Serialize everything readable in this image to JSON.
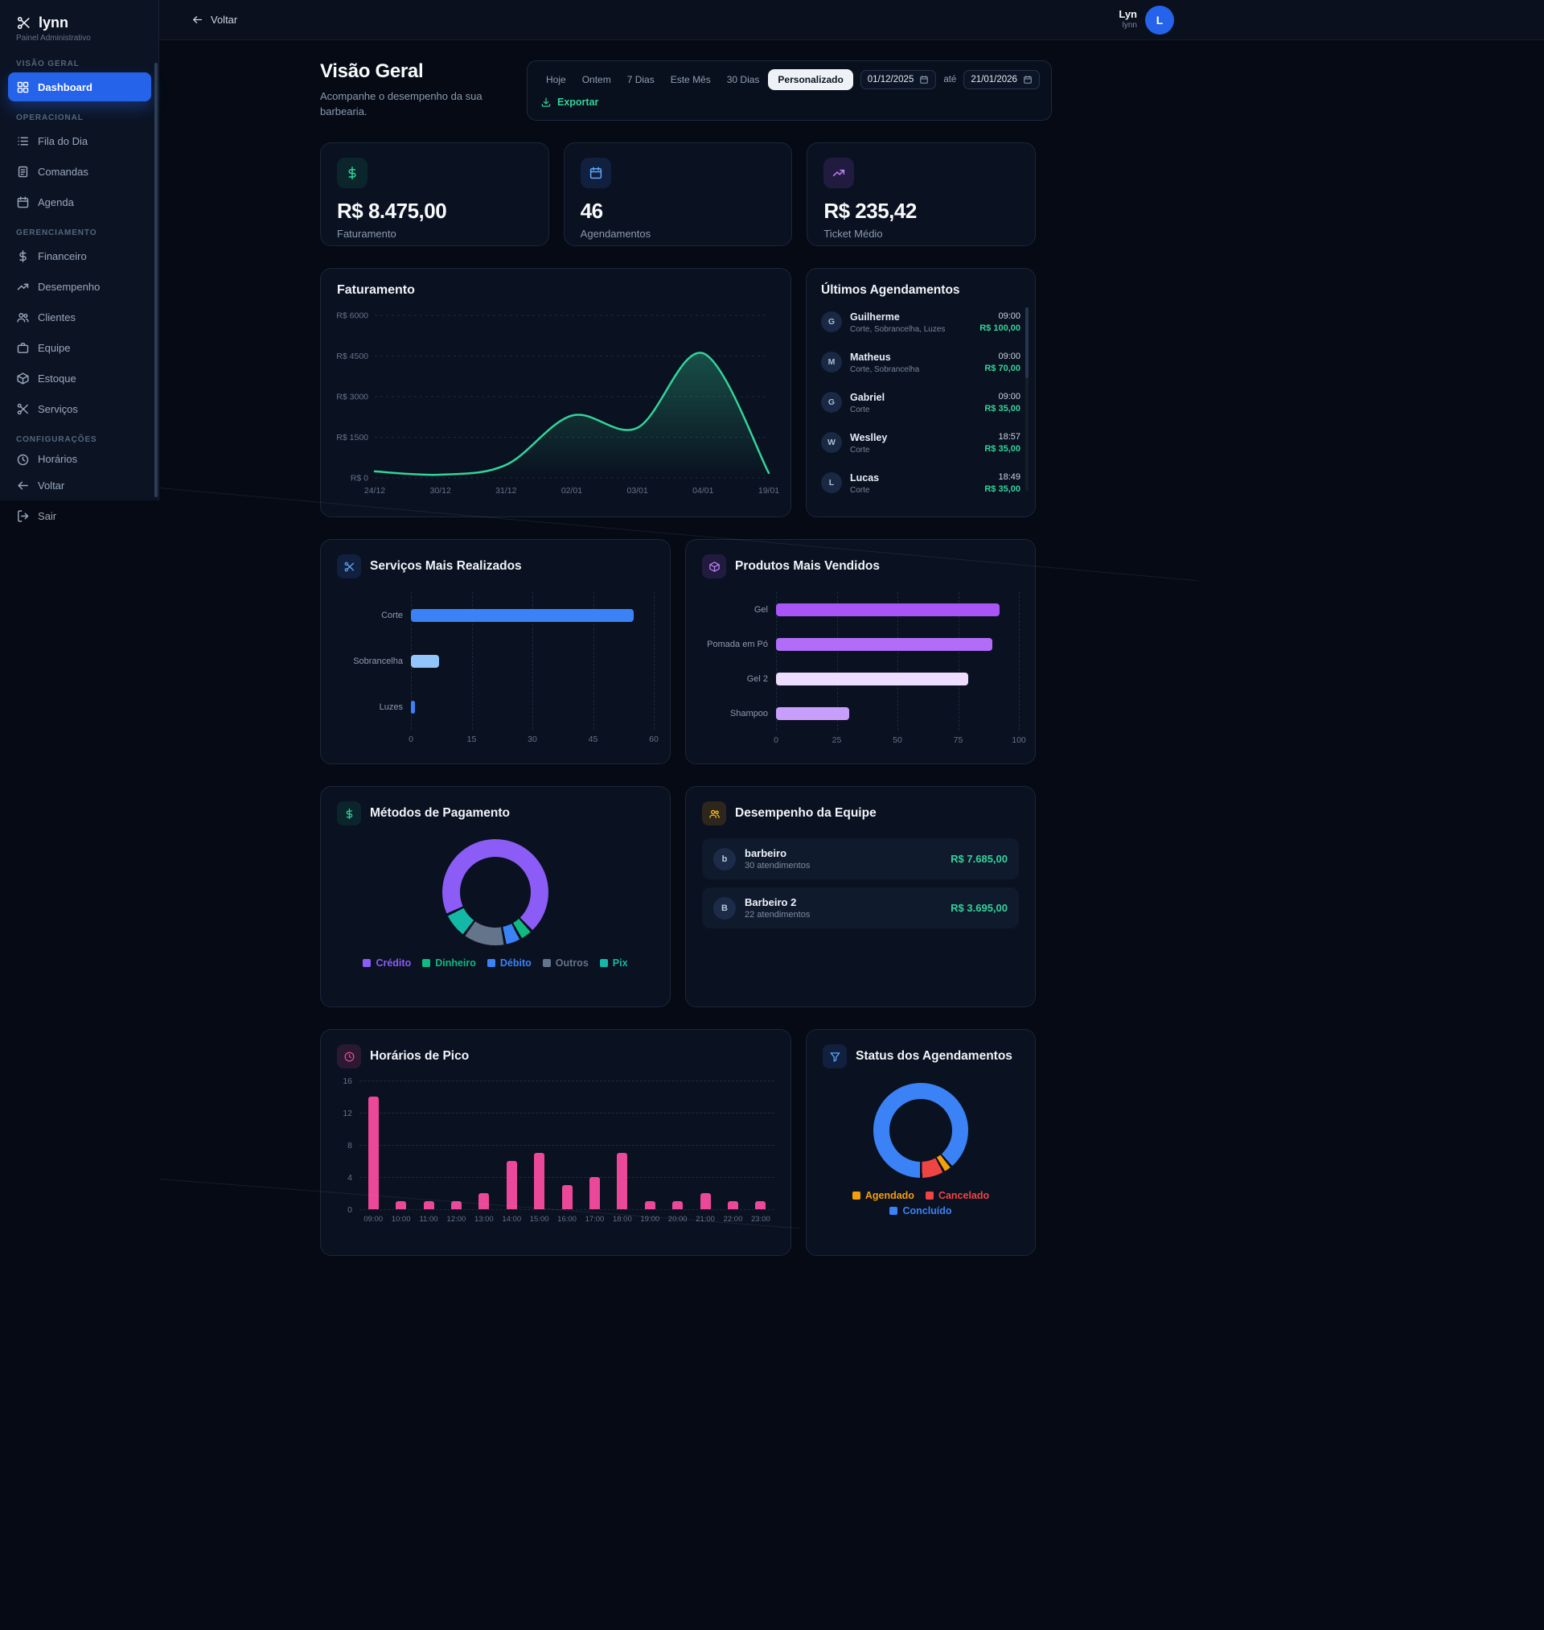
{
  "sidebar": {
    "logo_name": "lynn",
    "logo_subtitle": "Painel Administrativo",
    "logo_icon": "scissors",
    "sections": [
      {
        "label": "VISÃO GERAL",
        "items": [
          {
            "label": "Dashboard",
            "icon": "dashboard",
            "active": true
          }
        ]
      },
      {
        "label": "OPERACIONAL",
        "items": [
          {
            "label": "Fila do Dia",
            "icon": "list"
          },
          {
            "label": "Comandas",
            "icon": "receipt"
          },
          {
            "label": "Agenda",
            "icon": "calendar"
          }
        ]
      },
      {
        "label": "GERENCIAMENTO",
        "items": [
          {
            "label": "Financeiro",
            "icon": "dollar"
          },
          {
            "label": "Desempenho",
            "icon": "trending-up"
          },
          {
            "label": "Clientes",
            "icon": "users"
          },
          {
            "label": "Equipe",
            "icon": "briefcase"
          },
          {
            "label": "Estoque",
            "icon": "package"
          },
          {
            "label": "Serviços",
            "icon": "scissors"
          }
        ]
      },
      {
        "label": "CONFIGURAÇÕES",
        "items": [
          {
            "label": "Horários",
            "icon": "clock",
            "clipped": true
          }
        ]
      }
    ],
    "footer_items": [
      {
        "label": "Voltar",
        "icon": "arrow-left"
      },
      {
        "label": "Sair",
        "icon": "log-out"
      }
    ]
  },
  "topbar": {
    "back_label": "Voltar",
    "user_name": "Lyn",
    "user_handle": "lynn",
    "avatar_initial": "L"
  },
  "page": {
    "title": "Visão Geral",
    "subtitle": "Acompanhe o desempenho da sua barbearia."
  },
  "filters": {
    "buttons": [
      "Hoje",
      "Ontem",
      "7 Dias",
      "Este Mês",
      "30 Dias",
      "Personalizado"
    ],
    "active": "Personalizado",
    "date_from": "01/12/2025",
    "until_label": "até",
    "date_to": "21/01/2026",
    "export_label": "Exportar"
  },
  "stats": [
    {
      "icon": "dollar",
      "accent": "green",
      "value": "R$ 8.475,00",
      "label": "Faturamento"
    },
    {
      "icon": "calendar",
      "accent": "blue",
      "value": "46",
      "label": "Agendamentos"
    },
    {
      "icon": "trending-up",
      "accent": "purple",
      "value": "R$ 235,42",
      "label": "Ticket Médio"
    }
  ],
  "cards": {
    "revenue": {
      "title": "Faturamento"
    },
    "appointments": {
      "title": "Últimos Agendamentos"
    },
    "services": {
      "title": "Serviços Mais Realizados"
    },
    "products": {
      "title": "Produtos Mais Vendidos"
    },
    "payments": {
      "title": "Métodos de Pagamento"
    },
    "team": {
      "title": "Desempenho da Equipe"
    },
    "peak": {
      "title": "Horários de Pico"
    },
    "status": {
      "title": "Status dos Agendamentos"
    }
  },
  "appointments": [
    {
      "initial": "G",
      "name": "Guilherme",
      "services": "Corte, Sobrancelha, Luzes",
      "time": "09:00",
      "price": "R$ 100,00"
    },
    {
      "initial": "M",
      "name": "Matheus",
      "services": "Corte, Sobrancelha",
      "time": "09:00",
      "price": "R$ 70,00"
    },
    {
      "initial": "G",
      "name": "Gabriel",
      "services": "Corte",
      "time": "09:00",
      "price": "R$ 35,00"
    },
    {
      "initial": "W",
      "name": "Weslley",
      "services": "Corte",
      "time": "18:57",
      "price": "R$ 35,00"
    },
    {
      "initial": "L",
      "name": "Lucas",
      "services": "Corte",
      "time": "18:49",
      "price": "R$ 35,00"
    }
  ],
  "team": [
    {
      "initial": "b",
      "name": "barbeiro",
      "sub": "30 atendimentos",
      "value": "R$ 7.685,00"
    },
    {
      "initial": "B",
      "name": "Barbeiro 2",
      "sub": "22 atendimentos",
      "value": "R$ 3.695,00"
    }
  ],
  "chart_data": [
    {
      "id": "revenue",
      "type": "area",
      "title": "Faturamento",
      "x": [
        "24/12",
        "30/12",
        "31/12",
        "02/01",
        "03/01",
        "04/01",
        "19/01"
      ],
      "values": [
        240,
        120,
        480,
        2300,
        1850,
        4600,
        180
      ],
      "ylim": [
        0,
        6000
      ],
      "yticks": [
        {
          "v": 0,
          "label": "R$ 0"
        },
        {
          "v": 1500,
          "label": "R$ 1500"
        },
        {
          "v": 3000,
          "label": "R$ 3000"
        },
        {
          "v": 4500,
          "label": "R$ 4500"
        },
        {
          "v": 6000,
          "label": "R$ 6000"
        }
      ],
      "line_color": "#34d399",
      "fill_from": "rgba(52,211,153,0.32)",
      "fill_to": "rgba(52,211,153,0)",
      "grid": "dashed",
      "legend": false
    },
    {
      "id": "services",
      "type": "bar",
      "orientation": "horizontal",
      "title": "Serviços Mais Realizados",
      "categories": [
        "Corte",
        "Sobrancelha",
        "Luzes"
      ],
      "values": [
        55,
        7,
        1
      ],
      "xmax": 60,
      "xticks": [
        0,
        15,
        30,
        45,
        60
      ],
      "colors": [
        "#3b82f6",
        "#93c5fd",
        "#3b82f6"
      ],
      "grid": "dashed"
    },
    {
      "id": "products",
      "type": "bar",
      "orientation": "horizontal",
      "title": "Produtos Mais Vendidos",
      "categories": [
        "Gel",
        "Pomada em Pó",
        "Gel 2",
        "Shampoo"
      ],
      "values": [
        92,
        89,
        79,
        30
      ],
      "xmax": 100,
      "xticks": [
        0,
        25,
        50,
        75,
        100
      ],
      "colors": [
        "#a855f7",
        "#b16cf8",
        "#eedcfe",
        "#c79efb"
      ],
      "grid": "dashed"
    },
    {
      "id": "payments",
      "type": "donut",
      "title": "Métodos de Pagamento",
      "labels": [
        "Crédito",
        "Dinheiro",
        "Débito",
        "Outros",
        "Pix"
      ],
      "values": [
        70,
        4,
        5,
        13,
        8
      ],
      "colors": [
        "#8b5cf6",
        "#10b981",
        "#3b82f6",
        "#64748b",
        "#14b8a6"
      ],
      "rotation": 245,
      "legend": "bottom"
    },
    {
      "id": "peak",
      "type": "bar",
      "orientation": "vertical",
      "title": "Horários de Pico",
      "categories": [
        "09:00",
        "10:00",
        "11:00",
        "12:00",
        "13:00",
        "14:00",
        "15:00",
        "16:00",
        "17:00",
        "18:00",
        "19:00",
        "20:00",
        "21:00",
        "22:00",
        "23:00"
      ],
      "values": [
        14,
        1,
        1,
        1,
        2,
        6,
        7,
        3,
        4,
        7,
        1,
        1,
        2,
        1,
        1
      ],
      "ymax": 16,
      "yticks": [
        0,
        4,
        8,
        12,
        16
      ],
      "colors": [
        "#ec4899"
      ],
      "grid": "dashed"
    },
    {
      "id": "status",
      "type": "donut",
      "title": "Status dos Agendamentos",
      "labels": [
        "Agendado",
        "Cancelado",
        "Concluído"
      ],
      "values": [
        3,
        8,
        89
      ],
      "colors": [
        "#f59e0b",
        "#ef4444",
        "#3b82f6"
      ],
      "rotation": 140,
      "legend": "bottom"
    }
  ]
}
